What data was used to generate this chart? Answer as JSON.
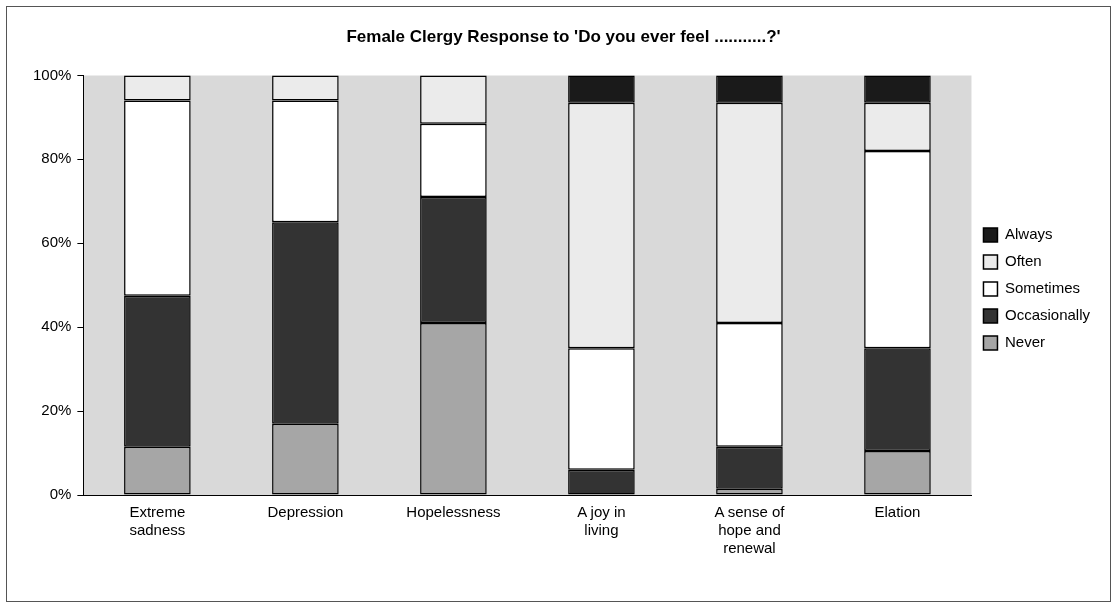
{
  "chart_data": {
    "type": "bar",
    "title": "Female Clergy Response to 'Do you ever feel ...........?'",
    "categories": [
      "Extreme sadness",
      "Depression",
      "Hopelessness",
      "A joy in living",
      "A sense of hope and renewal",
      "Elation"
    ],
    "stacked": true,
    "series": [
      {
        "name": "Never",
        "color": "#a6a6a6",
        "values": [
          11.5,
          17,
          41,
          0,
          1.5,
          10.5
        ]
      },
      {
        "name": "Occasionally",
        "color": "#333333",
        "values": [
          36,
          48,
          30,
          6,
          10,
          24.5
        ]
      },
      {
        "name": "Sometimes",
        "color": "#ffffff",
        "values": [
          46.5,
          29,
          17.5,
          29,
          29.5,
          47
        ]
      },
      {
        "name": "Often",
        "color": "#ebebeb",
        "values": [
          6,
          6,
          11.5,
          58.5,
          52.5,
          11.5
        ]
      },
      {
        "name": "Always",
        "color": "#1a1a1a",
        "values": [
          0,
          0,
          0,
          6.5,
          6.5,
          6.5
        ]
      }
    ],
    "ylim": [
      0,
      100
    ],
    "yticks": [
      {
        "value": 0,
        "label": "0%"
      },
      {
        "value": 20,
        "label": "20%"
      },
      {
        "value": 40,
        "label": "40%"
      },
      {
        "value": 60,
        "label": "60%"
      },
      {
        "value": 80,
        "label": "80%"
      },
      {
        "value": 100,
        "label": "100%"
      }
    ],
    "grid": false,
    "legend": "right"
  }
}
